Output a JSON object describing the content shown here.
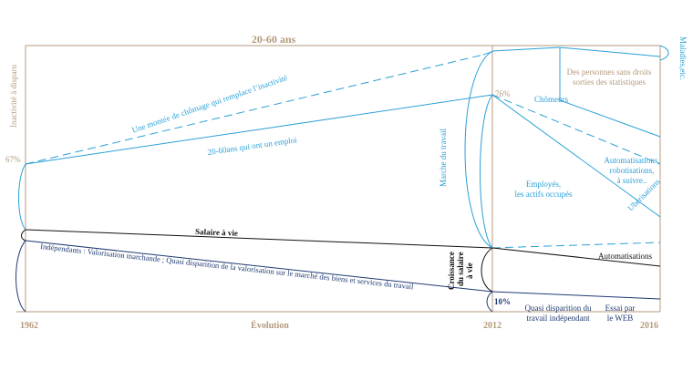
{
  "colors": {
    "frame": "#b49a7c",
    "employment": "#2aa0d6",
    "independent": "#1f3a73",
    "salary": "#111111"
  },
  "header": {
    "title": "20-60 ans"
  },
  "axis": {
    "left_year": "1962",
    "middle_label": "Évolution",
    "right_year_mid": "2012",
    "right_year_end": "2016"
  },
  "left_side": {
    "vertical_label": "Inactivité à disparu",
    "percent_67": "67%"
  },
  "lines": {
    "unemployment_rise": "Une montée de chômage qui remplace l’inactivité",
    "employed": "20-60ans qui ont un emploi",
    "salary": "Salaire à vie",
    "independents": "Indépendants : Valorisation marchande ; Quasi disparition de la valorisation sur le marché des biens et services du travail"
  },
  "middle": {
    "labour_market": "Marche du travail",
    "percent_76": "76%",
    "salary_growth": [
      "Croissance",
      "du salaire",
      "à vie"
    ],
    "percent_10": "10%"
  },
  "right_side": {
    "no_rights": [
      "Des personnes sans droits",
      "sorties des statistiques"
    ],
    "unemployed": "Chômeurs",
    "employees": [
      "Employés,",
      "les actifs occupés"
    ],
    "automation_group": [
      "Automatisations,",
      "robotisations,",
      "à suivre.."
    ],
    "uberisation": "Ubérisations",
    "automation": "Automatisations",
    "independent_disappearance": [
      "Quasi disparition du",
      "travail indépendant"
    ],
    "web_trial": [
      "Essai par",
      "le WEB"
    ],
    "illness": "Maladies,etc."
  }
}
